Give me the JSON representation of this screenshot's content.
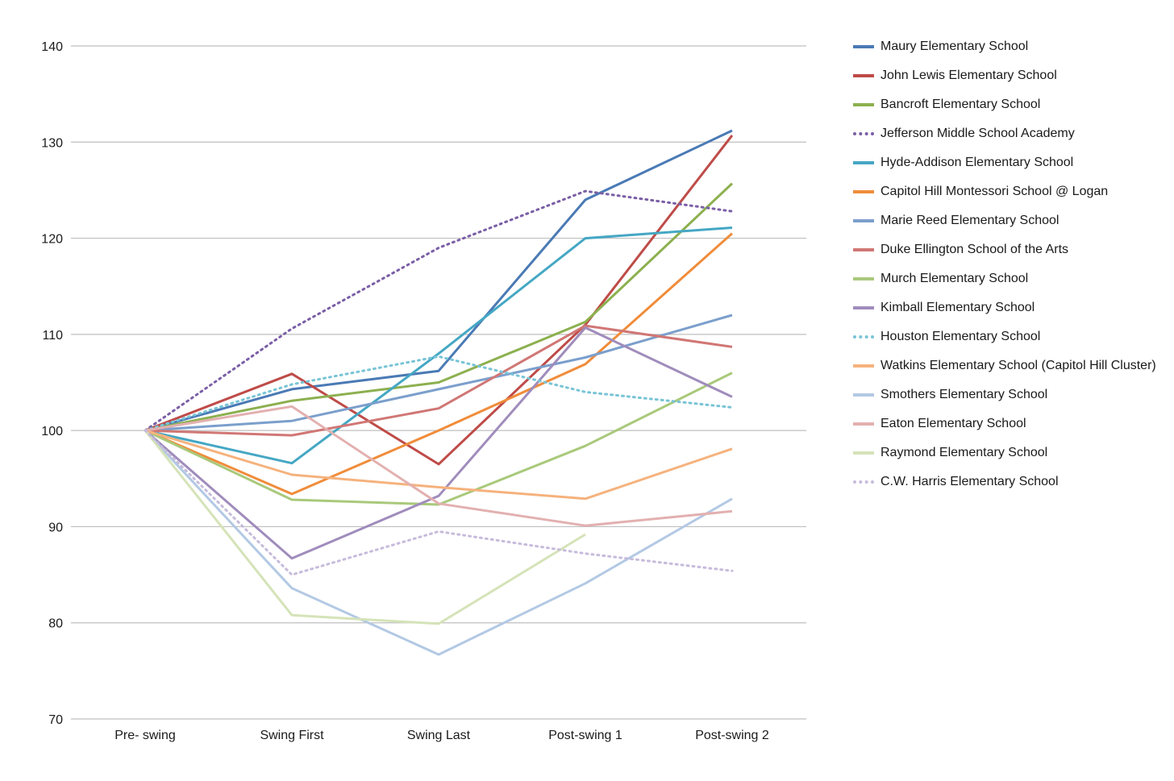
{
  "chart_data": {
    "type": "line",
    "title": "",
    "xlabel": "",
    "ylabel": "",
    "ylim": [
      70,
      140
    ],
    "yticks": [
      70,
      80,
      90,
      100,
      110,
      120,
      130,
      140
    ],
    "grid": true,
    "legend_position": "right",
    "categories": [
      "Pre- swing",
      "Swing First",
      "Swing Last",
      "Post-swing 1",
      "Post-swing 2"
    ],
    "series": [
      {
        "name": "Maury Elementary School",
        "color": "#4a7ab5",
        "style": "solid",
        "values": [
          100,
          104.3,
          106.2,
          124.0,
          131.2
        ]
      },
      {
        "name": "John Lewis Elementary School",
        "color": "#be4b48",
        "style": "solid",
        "values": [
          100,
          105.9,
          96.5,
          111.0,
          130.7
        ]
      },
      {
        "name": "Bancroft Elementary School",
        "color": "#8cb04f",
        "style": "solid",
        "values": [
          100,
          103.1,
          105.0,
          111.3,
          125.7
        ]
      },
      {
        "name": "Jefferson Middle School Academy",
        "color": "#7a5ea6",
        "style": "dotted",
        "values": [
          100,
          110.6,
          119.0,
          124.9,
          122.8
        ]
      },
      {
        "name": "Hyde-Addison Elementary School",
        "color": "#45a7c4",
        "style": "solid",
        "values": [
          100,
          96.6,
          108.0,
          120.0,
          121.1
        ]
      },
      {
        "name": "Capitol Hill Montessori School @ Logan",
        "color": "#f08c3a",
        "style": "solid",
        "values": [
          100,
          93.4,
          100.0,
          106.9,
          120.5
        ]
      },
      {
        "name": "Marie Reed Elementary School",
        "color": "#7b9fcc",
        "style": "solid",
        "values": [
          100,
          101.0,
          104.3,
          107.6,
          112.0
        ]
      },
      {
        "name": "Duke Ellington School of the Arts",
        "color": "#d07775",
        "style": "solid",
        "values": [
          100,
          99.5,
          102.3,
          110.9,
          108.7
        ]
      },
      {
        "name": "Murch Elementary School",
        "color": "#a9c97b",
        "style": "solid",
        "values": [
          100,
          92.8,
          92.3,
          98.4,
          106.0
        ]
      },
      {
        "name": "Kimball Elementary School",
        "color": "#a08cbc",
        "style": "solid",
        "values": [
          100,
          86.7,
          93.2,
          110.7,
          103.5
        ]
      },
      {
        "name": "Houston Elementary School",
        "color": "#78c4d6",
        "style": "dotted",
        "values": [
          100,
          104.8,
          107.7,
          104.0,
          102.4
        ]
      },
      {
        "name": "Watkins Elementary School (Capitol Hill Cluster)",
        "color": "#f5b27d",
        "style": "solid",
        "values": [
          100,
          95.4,
          94.1,
          92.9,
          98.1
        ]
      },
      {
        "name": "Smothers Elementary School",
        "color": "#b3c9e4",
        "style": "solid",
        "values": [
          100,
          83.6,
          76.7,
          84.1,
          92.9
        ]
      },
      {
        "name": "Eaton Elementary School",
        "color": "#e3b0b0",
        "style": "solid",
        "values": [
          100,
          102.5,
          92.4,
          90.1,
          91.6
        ]
      },
      {
        "name": "Raymond Elementary School",
        "color": "#d5e3b8",
        "style": "solid",
        "values": [
          100,
          80.8,
          79.9,
          89.2,
          null
        ]
      },
      {
        "name": "C.W. Harris Elementary School",
        "color": "#c6bbdb",
        "style": "dotted",
        "values": [
          100,
          85.0,
          89.5,
          87.2,
          85.4
        ]
      }
    ]
  }
}
